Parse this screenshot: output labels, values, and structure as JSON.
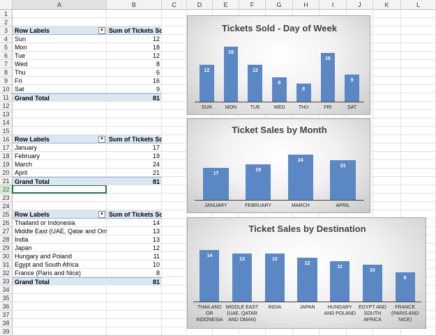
{
  "spreadsheet": {
    "columns": [
      "A",
      "B",
      "C",
      "D",
      "E",
      "F",
      "G",
      "H",
      "I",
      "J",
      "K",
      "L"
    ],
    "row_numbers": [
      1,
      2,
      3,
      4,
      5,
      6,
      7,
      8,
      9,
      10,
      11,
      12,
      13,
      14,
      15,
      16,
      17,
      18,
      19,
      20,
      21,
      22,
      23,
      24,
      25,
      26,
      27,
      28,
      29,
      30,
      31,
      32,
      33,
      34,
      35,
      36,
      37,
      38,
      39
    ]
  },
  "pivot_tables": [
    {
      "header": [
        "Row Labels",
        "Sum of Tickets Sold"
      ],
      "rows": [
        [
          "Sun",
          12
        ],
        [
          "Mon",
          18
        ],
        [
          "Tue",
          12
        ],
        [
          "Wed",
          8
        ],
        [
          "Thu",
          6
        ],
        [
          "Fri",
          16
        ],
        [
          "Sat",
          9
        ]
      ],
      "total": [
        "Grand Total",
        81
      ]
    },
    {
      "header": [
        "Row Labels",
        "Sum of Tickets Sold"
      ],
      "rows": [
        [
          "January",
          17
        ],
        [
          "February",
          19
        ],
        [
          "March",
          24
        ],
        [
          "April",
          21
        ]
      ],
      "total": [
        "Grand Total",
        81
      ]
    },
    {
      "header": [
        "Row Labels",
        "Sum of Tickets Sold"
      ],
      "rows": [
        [
          "Thailand or Indonesia",
          14
        ],
        [
          "Middle East (UAE, Qatar and Omar",
          13
        ],
        [
          "India",
          13
        ],
        [
          "Japan",
          12
        ],
        [
          "Hungary and Poland",
          11
        ],
        [
          "Egypt and South Africa",
          10
        ],
        [
          "France (Paris and Nice)",
          8
        ]
      ],
      "total": [
        "Grand Total",
        81
      ]
    }
  ],
  "charts": [
    {
      "type": "bar",
      "title": "Tickets Sold - Day of Week",
      "categories": [
        "SUN",
        "MON",
        "TUE",
        "WED",
        "THU",
        "FRI",
        "SAT"
      ],
      "values": [
        12,
        18,
        12,
        8,
        6,
        16,
        9
      ],
      "color": "#5b87c4"
    },
    {
      "type": "bar",
      "title": "Ticket Sales by Month",
      "categories": [
        "JANUARY",
        "FEBRUARY",
        "MARCH",
        "APRIL"
      ],
      "values": [
        17,
        19,
        24,
        21
      ],
      "color": "#5b87c4"
    },
    {
      "type": "bar",
      "title": "Ticket Sales by Destination",
      "categories": [
        "THAILAND OR INDONESIA",
        "MIDDLE EAST (UAE, QATAR AND OMAN)",
        "INDIA",
        "JAPAN",
        "HUNGARY AND POLAND",
        "EGYPT AND SOUTH AFRICA",
        "FRANCE (PARIS AND NICE)"
      ],
      "values": [
        14,
        13,
        13,
        12,
        11,
        10,
        8
      ],
      "color": "#5b87c4"
    }
  ]
}
